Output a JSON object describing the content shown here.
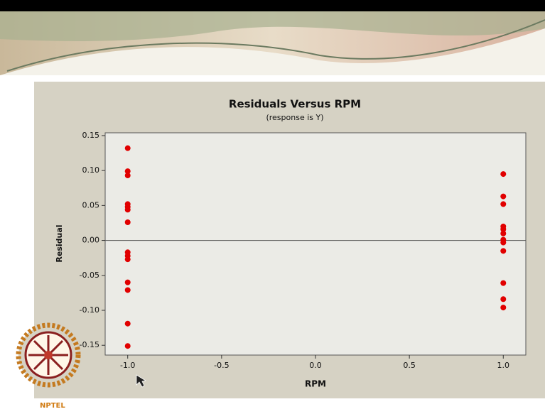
{
  "chart_data": {
    "type": "scatter",
    "title": "Residuals Versus RPM",
    "subtitle": "(response is Y)",
    "x_label": "RPM",
    "y_label": "Residual",
    "logo_text": "NPTEL",
    "color": "#e10000",
    "hline": 0,
    "xlim": [
      -1.12,
      1.12
    ],
    "ylim": [
      -0.164,
      0.154
    ],
    "xticks": [
      {
        "value": -1,
        "label": "-1.0"
      },
      -0.5,
      {
        "value": 0,
        "label": "0.0"
      },
      0.5,
      {
        "value": 1,
        "label": "1.0"
      }
    ],
    "yticks": [
      0.15,
      {
        "value": 0.1,
        "label": "0.10"
      },
      0.05,
      {
        "value": 0,
        "label": "0.00"
      },
      -0.05,
      {
        "value": -0.1,
        "label": "-0.10"
      },
      -0.15
    ],
    "x": [
      -1,
      -1,
      -1,
      -1,
      -1,
      -1,
      -1,
      -1,
      -1,
      -1,
      -1,
      -1,
      -1,
      -1,
      1,
      1,
      1,
      1,
      1,
      1,
      1,
      1,
      1,
      1,
      1,
      1
    ],
    "y": [
      0.132,
      0.099,
      0.093,
      0.052,
      0.048,
      0.044,
      0.026,
      -0.017,
      -0.022,
      -0.027,
      -0.06,
      -0.071,
      -0.119,
      -0.151,
      0.095,
      0.063,
      0.052,
      0.02,
      0.016,
      0.01,
      0.001,
      -0.003,
      -0.015,
      -0.061,
      -0.084,
      -0.096
    ]
  }
}
